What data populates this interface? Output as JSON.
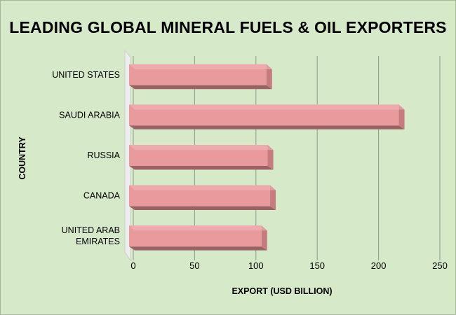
{
  "chart_data": {
    "type": "bar",
    "orientation": "horizontal",
    "title": "LEADING GLOBAL MINERAL FUELS & OIL EXPORTERS",
    "xlabel": "EXPORT (USD BILLION)",
    "ylabel": "COUNTRY",
    "categories": [
      [
        "UNITED STATES"
      ],
      [
        "SAUDI ARABIA"
      ],
      [
        "RUSSIA"
      ],
      [
        "CANADA"
      ],
      [
        "UNITED ARAB",
        "EMIRATES"
      ]
    ],
    "values": [
      112,
      220,
      113,
      115,
      108
    ],
    "xlim": [
      0,
      250
    ],
    "xticks": [
      "0",
      "50",
      "100",
      "150",
      "200",
      "250"
    ],
    "grid": "vertical",
    "legend": "none",
    "style": "3d",
    "colors": {
      "background": "#d6e9c8",
      "bar_front": "#e99a9c",
      "bar_top": "#f2b8b9",
      "bar_side": "#c67c7e",
      "bar_bottom": "#9b6263",
      "gridline": "#8f9a8a",
      "wall": "#eeeeee"
    }
  }
}
